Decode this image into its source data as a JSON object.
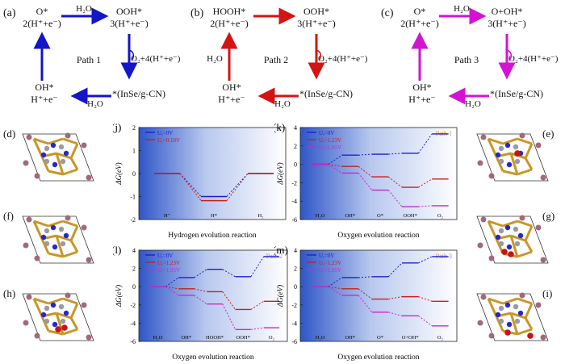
{
  "schemes": [
    {
      "label": "(a)",
      "species": {
        "tl": "O*",
        "tr": "OOH*",
        "bl": "OH*",
        "br": "*(InSe/g-CN)"
      },
      "counts": {
        "tl": "2(H⁺+e⁻)",
        "tr": "3(H⁺+e⁻)",
        "bl": "H⁺+e⁻"
      },
      "top_arrow": "H₂O",
      "bottom_arrow": "H₂O",
      "right_arrow": "O₂+4(H⁺+e⁻)",
      "path": "Path 1",
      "color": "#1414c8"
    },
    {
      "label": "(b)",
      "species": {
        "tl": "HOOH*",
        "tr": "OOH*",
        "bl": "OH*",
        "br": "*(InSe/g-CN)"
      },
      "counts": {
        "tl": "2(H⁺+e⁻)",
        "tr": "3(H⁺+e⁻)",
        "bl": "H⁺+e⁻"
      },
      "left_arrow": "H₂O",
      "bottom_arrow": "H₂O",
      "right_arrow": "O₂+4(H⁺+e⁻)",
      "path": "Path 2",
      "color": "#d21414"
    },
    {
      "label": "(c)",
      "species": {
        "tl": "O*",
        "tr": "O+OH*",
        "bl": "OH*",
        "br": "*(InSe/g-CN)"
      },
      "counts": {
        "tl": "2(H⁺+e⁻)",
        "tr": "3(H⁺+e⁻)",
        "bl": "H⁺+e⁻"
      },
      "top_arrow": "H₂O",
      "bottom_arrow": "H₂O",
      "right_arrow": "O₂+4(H⁺+e⁻)",
      "path": "Path 3",
      "color": "#d214d2"
    }
  ],
  "structure_labels": [
    "(d)",
    "(f)",
    "(h)",
    "(e)",
    "(g)",
    "(i)"
  ],
  "chart_data": [
    {
      "panel": "(j)",
      "type": "line",
      "xlabel": "Hydrogen evolution reaction",
      "ylabel": "ΔG(eV)",
      "categories": [
        "H⁺",
        "H*",
        "H₂"
      ],
      "ylim": [
        -2,
        2
      ],
      "yticks": [
        -2,
        -1,
        0,
        1,
        2
      ],
      "series": [
        {
          "name": "Uₑ=0V",
          "color": "#1e1ed2",
          "values": [
            0,
            -1.0,
            0
          ]
        },
        {
          "name": "Uₑ=0.18V",
          "color": "#c81e1e",
          "values": [
            0,
            -1.18,
            0
          ]
        }
      ]
    },
    {
      "panel": "(k)",
      "type": "line",
      "xlabel": "Oxygen evolution reaction",
      "ylabel": "ΔG(eV)",
      "path_label": "Path 1",
      "categories": [
        "H₂O",
        "OH*",
        "O*",
        "OOH*",
        "O₂"
      ],
      "ylim": [
        -6,
        4
      ],
      "yticks": [
        -6,
        -4,
        -2,
        0,
        2,
        4
      ],
      "series": [
        {
          "name": "Uₑ=0V",
          "color": "#1e1ed2",
          "values": [
            0,
            1.0,
            1.1,
            1.2,
            3.3
          ]
        },
        {
          "name": "Uₑ=1.23V",
          "color": "#c81e1e",
          "values": [
            0,
            -0.23,
            -1.36,
            -2.5,
            -1.6
          ]
        },
        {
          "name": "Uₑ=1.95V",
          "color": "#c828c8",
          "values": [
            0,
            -0.95,
            -2.8,
            -4.6,
            -4.5
          ]
        }
      ]
    },
    {
      "panel": "(l)",
      "type": "line",
      "xlabel": "Oxygen evolution reaction",
      "ylabel": "ΔG(eV)",
      "path_label": "Path 2",
      "categories": [
        "H₂O",
        "OH*",
        "HOOH*",
        "OOH*",
        "O₂"
      ],
      "ylim": [
        -6,
        4
      ],
      "yticks": [
        -6,
        -4,
        -2,
        0,
        2,
        4
      ],
      "series": [
        {
          "name": "Uₑ=0V",
          "color": "#1e1ed2",
          "values": [
            0,
            1.0,
            1.9,
            1.1,
            3.3
          ]
        },
        {
          "name": "Uₑ=1.23V",
          "color": "#c81e1e",
          "values": [
            0,
            -0.23,
            -0.55,
            -2.5,
            -1.6
          ]
        },
        {
          "name": "Uₑ=1.95V",
          "color": "#c828c8",
          "values": [
            0,
            -0.95,
            -1.9,
            -4.7,
            -4.5
          ]
        }
      ]
    },
    {
      "panel": "(m)",
      "type": "line",
      "xlabel": "Oxygen evolution reaction",
      "ylabel": "ΔG(eV)",
      "path_label": "Path 3",
      "categories": [
        "H₂O",
        "OH*",
        "O*",
        "O+OH*",
        "O₂"
      ],
      "ylim": [
        -6,
        4
      ],
      "yticks": [
        -6,
        -4,
        -2,
        0,
        2,
        4
      ],
      "series": [
        {
          "name": "Uₑ=0V",
          "color": "#1e1ed2",
          "values": [
            0,
            1.0,
            1.1,
            2.6,
            3.3
          ]
        },
        {
          "name": "Uₑ=1.23V",
          "color": "#c81e1e",
          "values": [
            0,
            -0.23,
            -1.36,
            -1.1,
            -1.6
          ]
        },
        {
          "name": "Uₑ=1.95V",
          "color": "#c828c8",
          "values": [
            0,
            -0.95,
            -2.8,
            -3.2,
            -4.3
          ]
        }
      ]
    }
  ]
}
